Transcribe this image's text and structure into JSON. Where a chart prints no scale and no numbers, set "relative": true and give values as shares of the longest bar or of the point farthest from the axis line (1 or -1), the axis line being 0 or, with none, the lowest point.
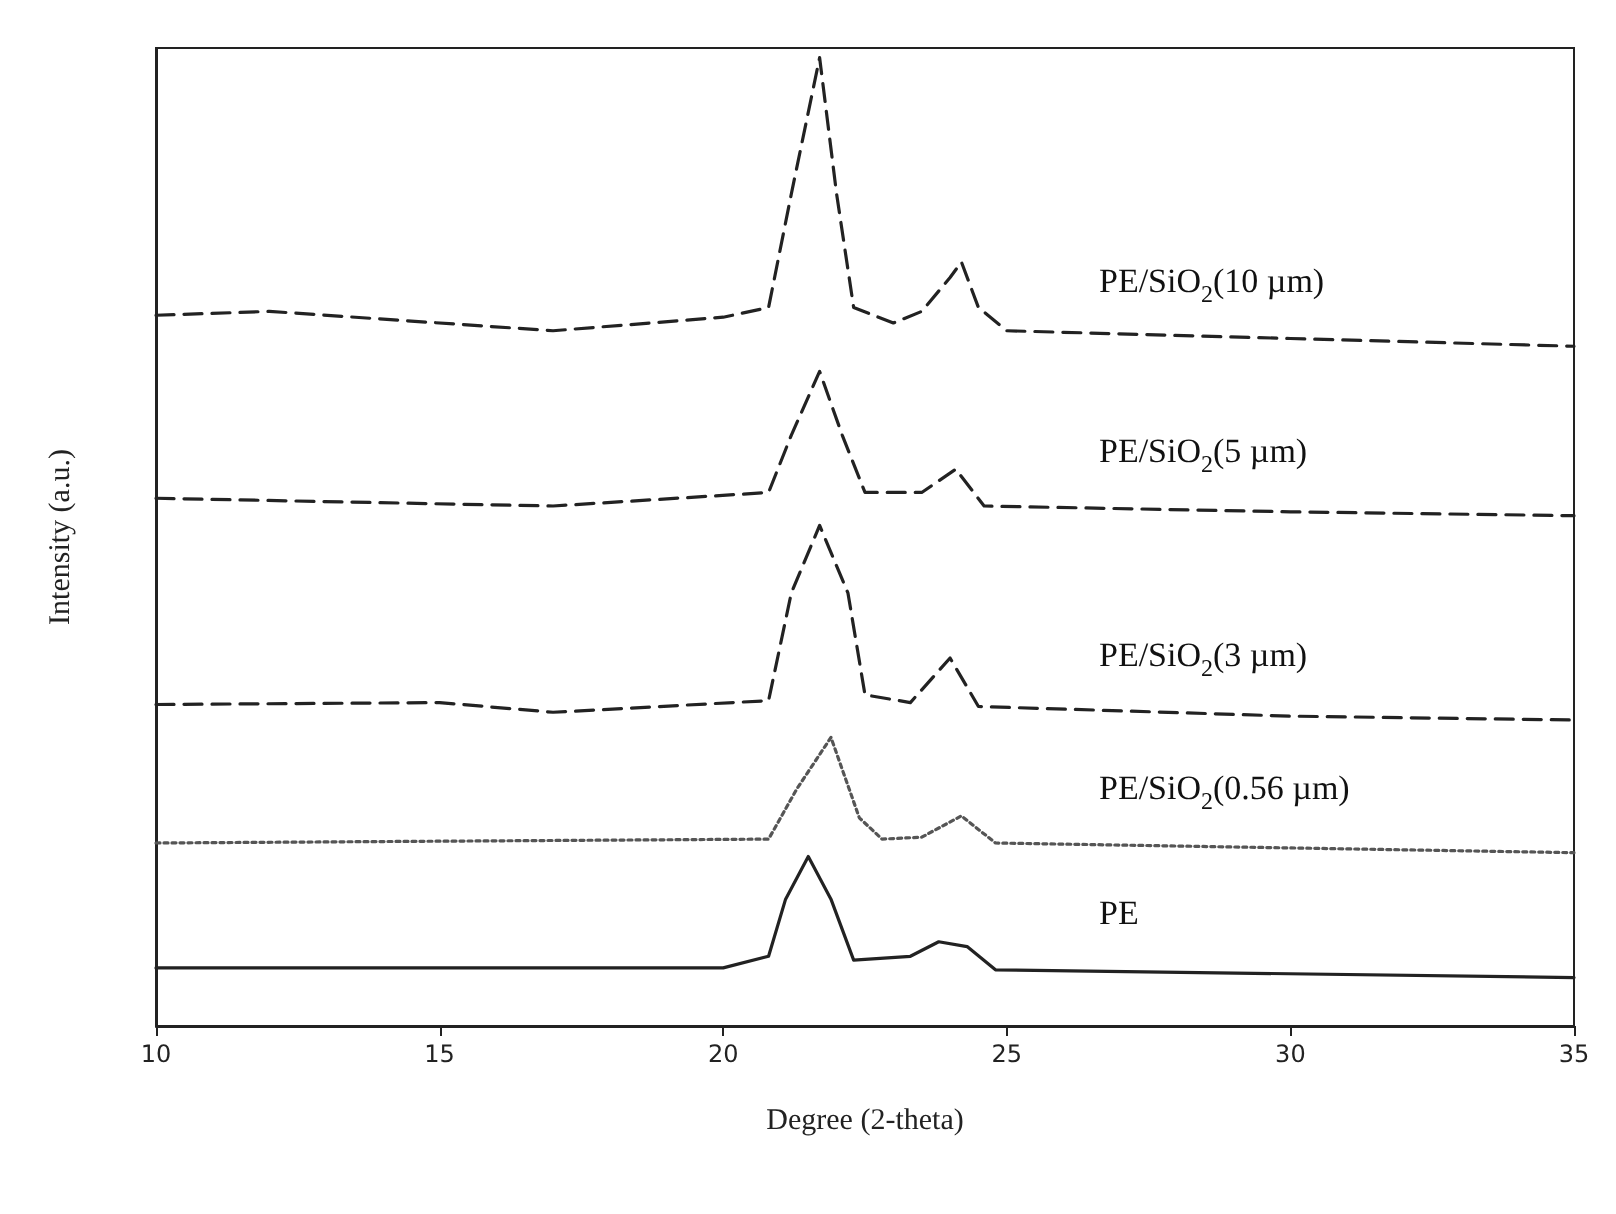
{
  "chart_data": {
    "type": "line",
    "relative": true,
    "xlabel": "Degree (2-theta)",
    "ylabel": "Intensity (a.u.)",
    "xlim": [
      10,
      35
    ],
    "xticks": [
      10,
      15,
      20,
      25,
      30,
      35
    ],
    "grid": false,
    "marker": "none",
    "series": [
      {
        "name": "PE/SiO$_{2}$(10 µm)",
        "color": "#222222",
        "line_style": "dashed",
        "x": [
          10,
          12,
          17,
          20,
          20.8,
          21.2,
          21.7,
          22.0,
          22.3,
          23,
          23.5,
          24.0,
          24.2,
          24.5,
          25,
          30,
          35
        ],
        "values": [
          0.734,
          0.738,
          0.718,
          0.732,
          0.742,
          0.859,
          1.0,
          0.859,
          0.742,
          0.726,
          0.738,
          0.773,
          0.789,
          0.742,
          0.718,
          0.71,
          0.702
        ]
      },
      {
        "name": "PE/SiO$_{2}$(5 µm)",
        "color": "#222222",
        "line_style": "dashed",
        "x": [
          10,
          17,
          20.8,
          21.2,
          21.7,
          22.1,
          22.5,
          23.5,
          24.1,
          24.6,
          30,
          35
        ],
        "values": [
          0.545,
          0.537,
          0.551,
          0.61,
          0.676,
          0.61,
          0.551,
          0.551,
          0.575,
          0.537,
          0.531,
          0.527
        ]
      },
      {
        "name": "PE/SiO$_{2}$(3 µm)",
        "color": "#222222",
        "line_style": "dashed",
        "x": [
          10,
          15,
          17,
          20.8,
          21.2,
          21.7,
          22.2,
          22.5,
          23.3,
          24.0,
          24.5,
          30,
          35
        ],
        "values": [
          0.332,
          0.334,
          0.324,
          0.336,
          0.447,
          0.517,
          0.447,
          0.342,
          0.334,
          0.38,
          0.33,
          0.32,
          0.316
        ]
      },
      {
        "name": "PE/SiO$_{2}$(0.56 µm)",
        "color": "#555555",
        "line_style": "dotted",
        "x": [
          10,
          20.8,
          21.3,
          21.9,
          22.4,
          22.8,
          23.5,
          24.2,
          24.8,
          35
        ],
        "values": [
          0.189,
          0.193,
          0.245,
          0.298,
          0.215,
          0.193,
          0.195,
          0.217,
          0.189,
          0.179
        ]
      },
      {
        "name": "PE",
        "color": "#222222",
        "line_style": "solid",
        "x": [
          10,
          20,
          20.8,
          21.1,
          21.5,
          21.9,
          22.3,
          23.3,
          23.8,
          24.3,
          24.8,
          35
        ],
        "values": [
          0.06,
          0.06,
          0.072,
          0.131,
          0.175,
          0.131,
          0.068,
          0.072,
          0.087,
          0.082,
          0.058,
          0.05
        ]
      }
    ]
  }
}
